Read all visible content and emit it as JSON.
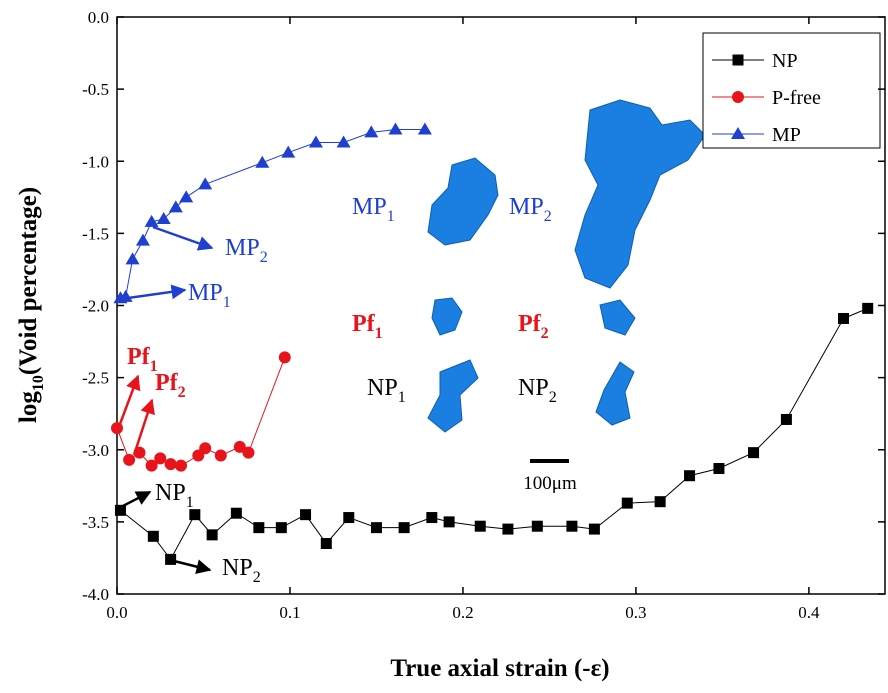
{
  "chart_data": {
    "type": "line",
    "x_label": "True axial strain (-ε)",
    "y_label": {
      "text": "log",
      "sub": "10",
      "rest": "(Void percentage)"
    },
    "xlim": [
      0,
      0.444
    ],
    "ylim": [
      -4.0,
      0.0
    ],
    "xticks": [
      {
        "value": 0,
        "label": "0.0"
      },
      0.1,
      0.2,
      0.3,
      0.4
    ],
    "yticks": [
      {
        "value": 0,
        "label": "0.0"
      },
      -0.5,
      {
        "value": -1,
        "label": "-1.0"
      },
      -1.5,
      {
        "value": -2,
        "label": "-2.0"
      },
      -2.5,
      {
        "value": -3,
        "label": "-3.0"
      },
      -3.5,
      {
        "value": -4,
        "label": "-4.0"
      }
    ],
    "legend": "upper right",
    "series": [
      {
        "name": "NP",
        "color": "#000000",
        "marker": "square",
        "x": [
          0.002,
          0.021,
          0.031,
          0.045,
          0.055,
          0.069,
          0.082,
          0.095,
          0.109,
          0.121,
          0.134,
          0.15,
          0.166,
          0.182,
          0.192,
          0.21,
          0.226,
          0.243,
          0.263,
          0.276,
          0.295,
          0.314,
          0.331,
          0.348,
          0.368,
          0.387,
          0.42,
          0.434
        ],
        "values": [
          -3.42,
          -3.6,
          -3.76,
          -3.45,
          -3.59,
          -3.44,
          -3.54,
          -3.54,
          -3.45,
          -3.65,
          -3.47,
          -3.54,
          -3.54,
          -3.47,
          -3.5,
          -3.53,
          -3.55,
          -3.53,
          -3.53,
          -3.55,
          -3.37,
          -3.36,
          -3.18,
          -3.13,
          -3.02,
          -2.79,
          -2.09,
          -2.02
        ]
      },
      {
        "name": "P-free",
        "color": "#e8141c",
        "marker": "circle",
        "x": [
          0.0,
          0.007,
          0.013,
          0.02,
          0.025,
          0.031,
          0.037,
          0.047,
          0.051,
          0.06,
          0.071,
          0.076,
          0.097
        ],
        "values": [
          -2.85,
          -3.07,
          -3.02,
          -3.11,
          -3.06,
          -3.1,
          -3.11,
          -3.04,
          -2.99,
          -3.04,
          -2.98,
          -3.02,
          -2.36
        ]
      },
      {
        "name": "MP",
        "color": "#1f3fcf",
        "marker": "triangle",
        "x": [
          0.002,
          0.005,
          0.009,
          0.015,
          0.02,
          0.027,
          0.034,
          0.04,
          0.051,
          0.084,
          0.099,
          0.115,
          0.131,
          0.147,
          0.161,
          0.178
        ],
        "values": [
          -1.95,
          -1.94,
          -1.68,
          -1.55,
          -1.42,
          -1.4,
          -1.32,
          -1.25,
          -1.16,
          -1.01,
          -0.94,
          -0.87,
          -0.87,
          -0.8,
          -0.78,
          -0.78
        ]
      }
    ],
    "annotations": [
      {
        "text": "MP",
        "sub": "2",
        "color": "#1f3fcf"
      },
      {
        "text": "MP",
        "sub": "1",
        "color": "#1f3fcf"
      },
      {
        "text": "Pf",
        "sub": "1",
        "color": "#e8141c"
      },
      {
        "text": "Pf",
        "sub": "2",
        "color": "#e8141c"
      },
      {
        "text": "NP",
        "sub": "1",
        "color": "#000000"
      },
      {
        "text": "NP",
        "sub": "2",
        "color": "#000000"
      },
      {
        "text": "MP",
        "sub": "1",
        "color": "#1f3fcf"
      },
      {
        "text": "MP",
        "sub": "2",
        "color": "#1f3fcf"
      },
      {
        "text": "Pf",
        "sub": "1",
        "color": "#e8141c"
      },
      {
        "text": "Pf",
        "sub": "2",
        "color": "#e8141c"
      },
      {
        "text": "NP",
        "sub": "1",
        "color": "#000000"
      },
      {
        "text": "NP",
        "sub": "2",
        "color": "#000000"
      }
    ],
    "scale_bar": "100μm"
  }
}
